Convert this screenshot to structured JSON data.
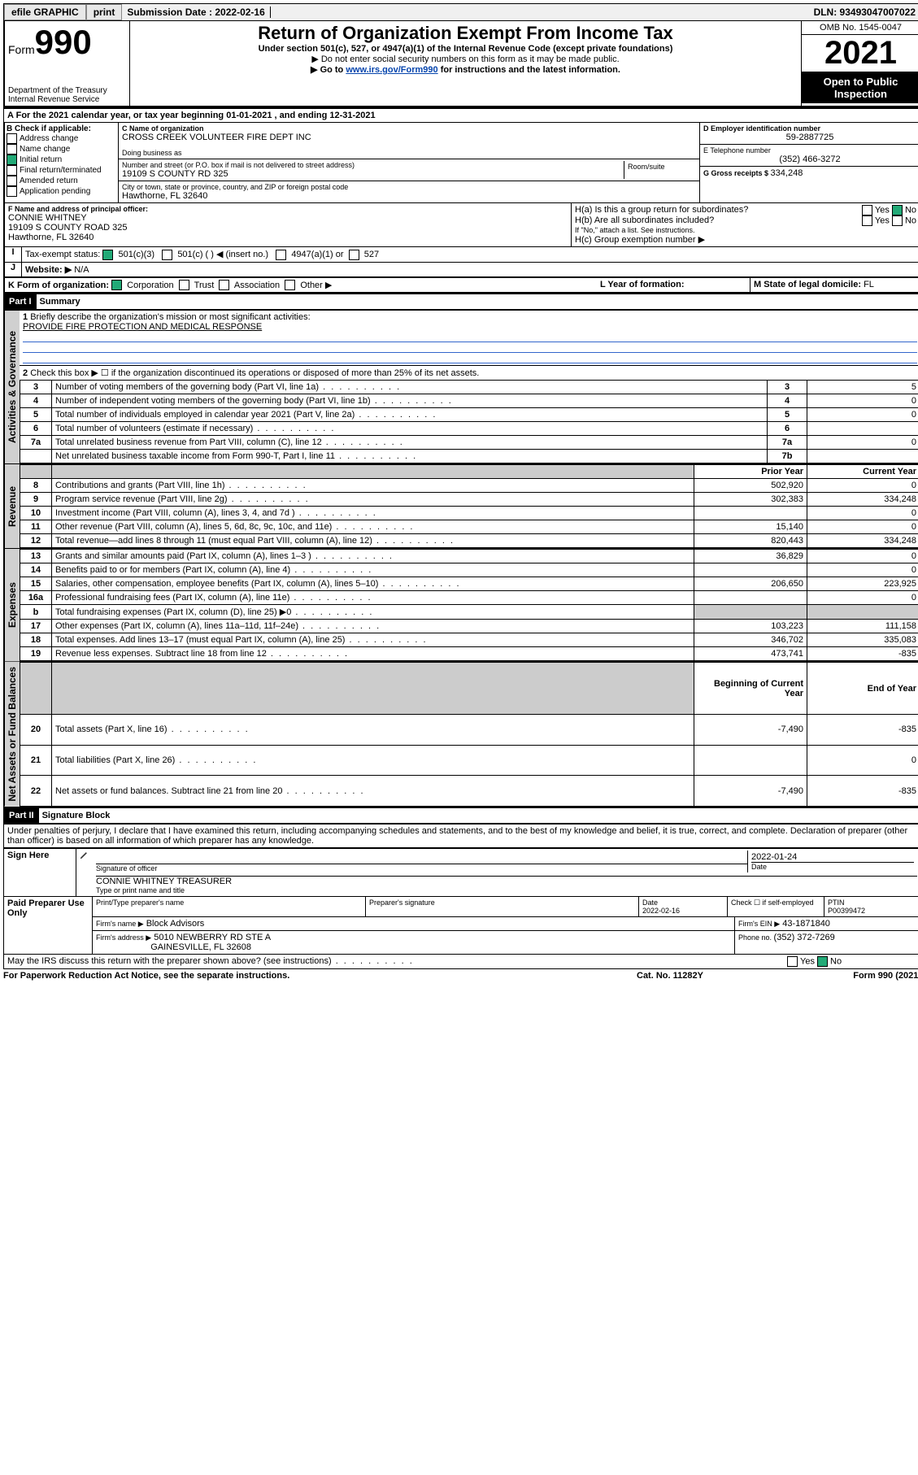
{
  "topbar": {
    "efile": "efile GRAPHIC",
    "print": "print",
    "submission_label": "Submission Date : 2022-02-16",
    "dln": "DLN: 93493047007022"
  },
  "header": {
    "form_word": "Form",
    "form_num": "990",
    "title": "Return of Organization Exempt From Income Tax",
    "subtitle": "Under section 501(c), 527, or 4947(a)(1) of the Internal Revenue Code (except private foundations)",
    "note1": "Do not enter social security numbers on this form as it may be made public.",
    "note2_pre": "Go to ",
    "note2_link": "www.irs.gov/Form990",
    "note2_post": " for instructions and the latest information.",
    "dept": "Department of the Treasury",
    "irs": "Internal Revenue Service",
    "omb": "OMB No. 1545-0047",
    "year": "2021",
    "inspect": "Open to Public Inspection"
  },
  "section_a": {
    "text_pre": "For the 2021 calendar year, or tax year beginning ",
    "begin": "01-01-2021",
    "mid": " , and ending ",
    "end": "12-31-2021"
  },
  "col_b": {
    "header": "B Check if applicable:",
    "opts": [
      "Address change",
      "Name change",
      "Initial return",
      "Final return/terminated",
      "Amended return",
      "Application pending"
    ],
    "checked_idx": 2
  },
  "col_c": {
    "name_label": "C Name of organization",
    "name": "CROSS CREEK VOLUNTEER FIRE DEPT INC",
    "dba_label": "Doing business as",
    "street_label": "Number and street (or P.O. box if mail is not delivered to street address)",
    "room_label": "Room/suite",
    "street": "19109 S COUNTY RD 325",
    "city_label": "City or town, state or province, country, and ZIP or foreign postal code",
    "city": "Hawthorne, FL  32640"
  },
  "col_d": {
    "ein_label": "D Employer identification number",
    "ein": "59-2887725",
    "phone_label": "E Telephone number",
    "phone": "(352) 466-3272",
    "gross_label": "G Gross receipts $ ",
    "gross": "334,248"
  },
  "row_f": {
    "label": "F Name and address of principal officer:",
    "name": "CONNIE WHITNEY",
    "street": "19109 S COUNTY ROAD 325",
    "city": "Hawthorne, FL  32640"
  },
  "row_h": {
    "ha": "H(a)  Is this a group return for subordinates?",
    "hb": "H(b)  Are all subordinates included?",
    "hb_note": "If \"No,\" attach a list. See instructions.",
    "hc": "H(c)  Group exemption number ▶",
    "yes": "Yes",
    "no": "No"
  },
  "row_i": {
    "label": "Tax-exempt status:",
    "o1": "501(c)(3)",
    "o2": "501(c) (   ) ◀ (insert no.)",
    "o3": "4947(a)(1) or",
    "o4": "527"
  },
  "row_j": {
    "label": "Website: ▶",
    "val": "N/A"
  },
  "row_k": {
    "label": "K Form of organization:",
    "opts": [
      "Corporation",
      "Trust",
      "Association",
      "Other ▶"
    ],
    "l_label": "L Year of formation:",
    "m_label": "M State of legal domicile: ",
    "m_val": "FL"
  },
  "part1": {
    "header": "Part I",
    "title": "Summary",
    "tabs": {
      "gov": "Activities & Governance",
      "rev": "Revenue",
      "exp": "Expenses",
      "net": "Net Assets or Fund Balances"
    },
    "q1": "Briefly describe the organization's mission or most significant activities:",
    "q1_val": "PROVIDE FIRE PROTECTION AND MEDICAL RESPONSE",
    "q2": "Check this box ▶ ☐  if the organization discontinued its operations or disposed of more than 25% of its net assets.",
    "col_prior": "Prior Year",
    "col_current": "Current Year",
    "col_begin": "Beginning of Current Year",
    "col_end": "End of Year",
    "lines_gov": [
      {
        "n": "3",
        "t": "Number of voting members of the governing body (Part VI, line 1a)",
        "r": "3",
        "v": "5"
      },
      {
        "n": "4",
        "t": "Number of independent voting members of the governing body (Part VI, line 1b)",
        "r": "4",
        "v": "0"
      },
      {
        "n": "5",
        "t": "Total number of individuals employed in calendar year 2021 (Part V, line 2a)",
        "r": "5",
        "v": "0"
      },
      {
        "n": "6",
        "t": "Total number of volunteers (estimate if necessary)",
        "r": "6",
        "v": ""
      },
      {
        "n": "7a",
        "t": "Total unrelated business revenue from Part VIII, column (C), line 12",
        "r": "7a",
        "v": "0"
      },
      {
        "n": "",
        "t": "Net unrelated business taxable income from Form 990-T, Part I, line 11",
        "r": "7b",
        "v": ""
      }
    ],
    "lines_rev": [
      {
        "n": "8",
        "t": "Contributions and grants (Part VIII, line 1h)",
        "p": "502,920",
        "c": "0"
      },
      {
        "n": "9",
        "t": "Program service revenue (Part VIII, line 2g)",
        "p": "302,383",
        "c": "334,248"
      },
      {
        "n": "10",
        "t": "Investment income (Part VIII, column (A), lines 3, 4, and 7d )",
        "p": "",
        "c": "0"
      },
      {
        "n": "11",
        "t": "Other revenue (Part VIII, column (A), lines 5, 6d, 8c, 9c, 10c, and 11e)",
        "p": "15,140",
        "c": "0"
      },
      {
        "n": "12",
        "t": "Total revenue—add lines 8 through 11 (must equal Part VIII, column (A), line 12)",
        "p": "820,443",
        "c": "334,248"
      }
    ],
    "lines_exp": [
      {
        "n": "13",
        "t": "Grants and similar amounts paid (Part IX, column (A), lines 1–3 )",
        "p": "36,829",
        "c": "0"
      },
      {
        "n": "14",
        "t": "Benefits paid to or for members (Part IX, column (A), line 4)",
        "p": "",
        "c": "0"
      },
      {
        "n": "15",
        "t": "Salaries, other compensation, employee benefits (Part IX, column (A), lines 5–10)",
        "p": "206,650",
        "c": "223,925"
      },
      {
        "n": "16a",
        "t": "Professional fundraising fees (Part IX, column (A), line 11e)",
        "p": "",
        "c": "0"
      },
      {
        "n": "b",
        "t": "Total fundraising expenses (Part IX, column (D), line 25) ▶0",
        "p": "",
        "c": "",
        "shade": true
      },
      {
        "n": "17",
        "t": "Other expenses (Part IX, column (A), lines 11a–11d, 11f–24e)",
        "p": "103,223",
        "c": "111,158"
      },
      {
        "n": "18",
        "t": "Total expenses. Add lines 13–17 (must equal Part IX, column (A), line 25)",
        "p": "346,702",
        "c": "335,083"
      },
      {
        "n": "19",
        "t": "Revenue less expenses. Subtract line 18 from line 12",
        "p": "473,741",
        "c": "-835"
      }
    ],
    "lines_net": [
      {
        "n": "20",
        "t": "Total assets (Part X, line 16)",
        "p": "-7,490",
        "c": "-835"
      },
      {
        "n": "21",
        "t": "Total liabilities (Part X, line 26)",
        "p": "",
        "c": "0"
      },
      {
        "n": "22",
        "t": "Net assets or fund balances. Subtract line 21 from line 20",
        "p": "-7,490",
        "c": "-835"
      }
    ]
  },
  "part2": {
    "header": "Part II",
    "title": "Signature Block",
    "decl": "Under penalties of perjury, I declare that I have examined this return, including accompanying schedules and statements, and to the best of my knowledge and belief, it is true, correct, and complete. Declaration of preparer (other than officer) is based on all information of which preparer has any knowledge.",
    "sign_here": "Sign Here",
    "sig_officer": "Signature of officer",
    "sig_date": "2022-01-24",
    "date_label": "Date",
    "officer_name": "CONNIE WHITNEY TREASURER",
    "type_name": "Type or print name and title",
    "paid": "Paid Preparer Use Only",
    "prep_name_label": "Print/Type preparer's name",
    "prep_sig_label": "Preparer's signature",
    "prep_date_label": "Date",
    "prep_date": "2022-02-16",
    "check_if": "Check ☐ if self-employed",
    "ptin_label": "PTIN",
    "ptin": "P00399472",
    "firm_name_label": "Firm's name     ▶",
    "firm_name": "Block Advisors",
    "firm_ein_label": "Firm's EIN ▶",
    "firm_ein": "43-1871840",
    "firm_addr_label": "Firm's address ▶",
    "firm_addr1": "5010 NEWBERRY RD STE A",
    "firm_addr2": "GAINESVILLE, FL  32608",
    "firm_phone_label": "Phone no. ",
    "firm_phone": "(352) 372-7269",
    "discuss": "May the IRS discuss this return with the preparer shown above? (see instructions)"
  },
  "footer": {
    "left": "For Paperwork Reduction Act Notice, see the separate instructions.",
    "mid": "Cat. No. 11282Y",
    "right": "Form 990 (2021)"
  }
}
